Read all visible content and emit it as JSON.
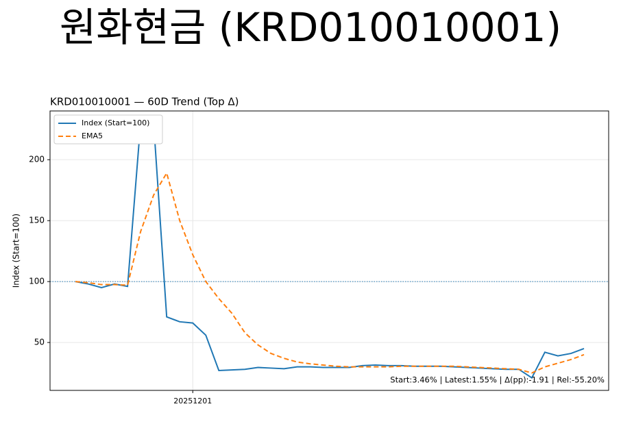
{
  "page_title": "원화현금 (KRD010010001)",
  "chart_data": {
    "type": "line",
    "title": "KRD010010001 — 60D Trend (Top Δ)",
    "y_label": "Index (Start=100)",
    "annotation": "Start:3.46% | Latest:1.55% | Δ(pp):-1.91 | Rel:-55.20%",
    "categories": [
      null,
      null,
      null,
      null,
      null,
      null,
      null,
      null,
      null,
      "20251201",
      null,
      null,
      null,
      null,
      null,
      null,
      null,
      null,
      null,
      null,
      null,
      null,
      null,
      null,
      null,
      null,
      null,
      null,
      null,
      null,
      null,
      null,
      null,
      null,
      null,
      null,
      null,
      null,
      null,
      null
    ],
    "series": [
      {
        "name": "Index (Start=100)",
        "color": "#1f77b4",
        "dash": "solid",
        "values": [
          100,
          98,
          95,
          98,
          96,
          230,
          230,
          71,
          67,
          66,
          56,
          27,
          27.5,
          28,
          29.5,
          29,
          28.5,
          30,
          30,
          29.5,
          29.5,
          29.5,
          31,
          31.5,
          31,
          31,
          30.5,
          30.5,
          30.5,
          30,
          29.5,
          29,
          28.5,
          28,
          28,
          21,
          42,
          39,
          41,
          45
        ]
      },
      {
        "name": "EMA5",
        "color": "#ff7f0e",
        "dash": "dashed",
        "values": [
          100,
          99,
          97.5,
          97.5,
          97,
          141,
          171,
          189,
          150,
          122,
          100,
          86,
          74,
          58,
          48,
          41,
          37,
          34,
          32.5,
          31.5,
          30.5,
          30,
          30,
          30,
          30,
          30.5,
          30.5,
          30.5,
          30.5,
          30.5,
          30,
          29.5,
          29,
          28.5,
          28,
          25,
          30,
          33,
          36,
          40
        ]
      }
    ],
    "hline": 100,
    "ylim": [
      10.7,
      240
    ],
    "yticks": [
      50,
      100,
      150,
      200
    ],
    "grid": true,
    "legend": "upper left"
  }
}
